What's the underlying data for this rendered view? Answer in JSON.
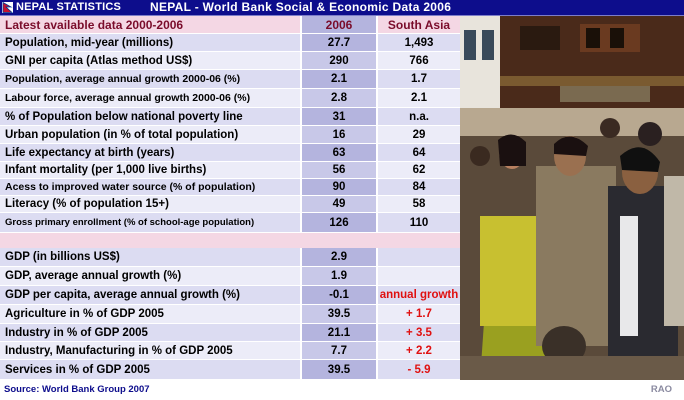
{
  "brand": "NEPAL STATISTICS",
  "title": "NEPAL - World Bank Social & Economic Data 2006",
  "header": {
    "label": "Latest available data 2000-2006",
    "col1": "2006",
    "col2": "South Asia"
  },
  "social_rows": [
    {
      "label": "Population, mid-year (millions)",
      "value": "27.7",
      "south_asia": "1,493"
    },
    {
      "label": "GNI per capita (Atlas method US$)",
      "value": "290",
      "south_asia": "766"
    },
    {
      "label": "Population, average annual growth 2000-06 (%)",
      "value": "2.1",
      "south_asia": "1.7"
    },
    {
      "label": "Labour force, average annual growth 2000-06 (%)",
      "value": "2.8",
      "south_asia": "2.1"
    },
    {
      "label": "% of Population below national poverty line",
      "value": "31",
      "south_asia": "n.a."
    },
    {
      "label": "Urban population (in % of total population)",
      "value": "16",
      "south_asia": "29"
    },
    {
      "label": "Life expectancy at birth (years)",
      "value": "63",
      "south_asia": "64"
    },
    {
      "label": "Infant mortality (per 1,000 live births)",
      "value": "56",
      "south_asia": "62"
    },
    {
      "label": "Acess to improved water source (% of population)",
      "value": "90",
      "south_asia": "84"
    },
    {
      "label": "Literacy (% of population 15+)",
      "value": "49",
      "south_asia": "58"
    },
    {
      "label": "Gross primary enrollment (% of school-age population)",
      "value": "126",
      "south_asia": "110"
    }
  ],
  "economic_rows": [
    {
      "label": "GDP (in billions US$)",
      "value": "2.9",
      "extra": ""
    },
    {
      "label": "GDP,  average annual growth (%)",
      "value": "1.9",
      "extra": ""
    },
    {
      "label": "GDP per capita, average annual growth (%)",
      "value": "-0.1",
      "extra": "annual growth"
    },
    {
      "label": "Agriculture in % of GDP 2005",
      "value": "39.5",
      "extra": "+ 1.7"
    },
    {
      "label": "Industry in % of GDP 2005",
      "value": "21.1",
      "extra": "+ 3.5"
    },
    {
      "label": "Industry, Manufacturing in % of GDP 2005",
      "value": "7.7",
      "extra": "+ 2.2"
    },
    {
      "label": "Services in % of GDP 2005",
      "value": "39.5",
      "extra": "- 5.9"
    }
  ],
  "footer": {
    "source": "Source: World Bank Group   2007",
    "credit": "RAO"
  },
  "colors": {
    "title_bg": "#0d0d8c",
    "header_text": "#7a0c2b",
    "growth_red": "#e01010"
  },
  "icons": {
    "flag": "nepal-flag-icon",
    "photo": "street-crowd-photo"
  }
}
